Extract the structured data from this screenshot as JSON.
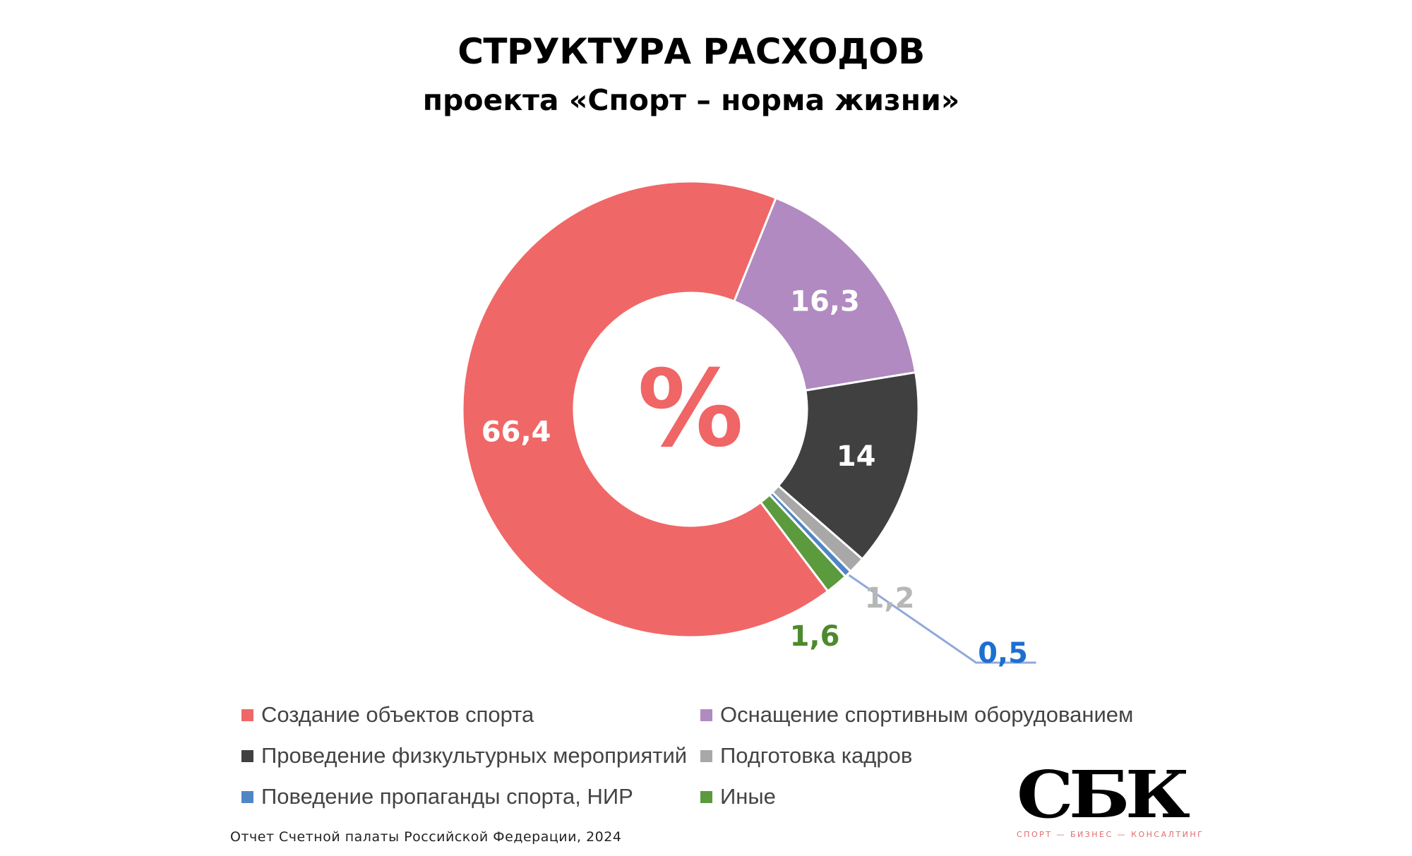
{
  "header": {
    "title": "СТРУКТУРА РАСХОДОВ",
    "subtitle": "проекта «Спорт – норма жизни»"
  },
  "chart_data": {
    "type": "pie",
    "variant": "donut",
    "center_label": "%",
    "center_label_color": "#f06565",
    "categories": [
      "Создание объектов спорта",
      "Оснащение спортивным оборудованием",
      "Проведение физкультурных мероприятий",
      "Подготовка кадров",
      "Поведение пропаганды спорта, НИР",
      "Иные"
    ],
    "values": [
      66.4,
      16.3,
      14,
      1.2,
      0.5,
      1.6
    ],
    "value_labels": [
      "66,4",
      "16,3",
      "14",
      "1,2",
      "0,5",
      "1,6"
    ],
    "colors": [
      "#f06767",
      "#b08ac0",
      "#404040",
      "#a8a8a8",
      "#4f86c6",
      "#5c9a3e"
    ],
    "label_colors": [
      "#ffffff",
      "#ffffff",
      "#ffffff",
      "#b7b7b7",
      "#1d6fd1",
      "#4d8a2e"
    ],
    "legend_placement": "bottom"
  },
  "source": "Отчет Счетной палаты Российской Федерации, 2024",
  "logo": {
    "mark": "СБК",
    "tagline": "СПОРТ — БИЗНЕС — КОНСАЛТИНГ"
  }
}
